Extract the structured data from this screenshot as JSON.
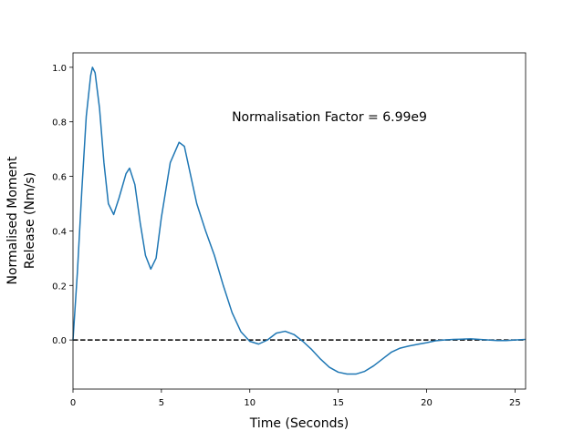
{
  "chart_data": {
    "type": "line",
    "xlabel": "Time (Seconds)",
    "ylabel": [
      "Normalised Moment",
      "Release (Nm/s)"
    ],
    "annotation": "Normalisation Factor = 6.99e9",
    "x": [
      0,
      0.25,
      0.5,
      0.75,
      1.0,
      1.1,
      1.25,
      1.5,
      1.75,
      2.0,
      2.3,
      2.6,
      3.0,
      3.2,
      3.5,
      3.8,
      4.1,
      4.4,
      4.7,
      5.0,
      5.5,
      6.0,
      6.3,
      6.6,
      7.0,
      7.5,
      8.0,
      8.5,
      9.0,
      9.5,
      10.0,
      10.5,
      11.0,
      11.5,
      12.0,
      12.5,
      13.0,
      13.5,
      14.0,
      14.5,
      15.0,
      15.5,
      16.0,
      16.5,
      17.0,
      17.5,
      18.0,
      18.5,
      19.0,
      19.5,
      20.0,
      20.5,
      21.0,
      21.5,
      22.0,
      22.5,
      23.0,
      23.5,
      24.0,
      24.5,
      25.0,
      25.6
    ],
    "series": [
      {
        "color": "#1f77b4",
        "values": [
          0,
          0.25,
          0.55,
          0.82,
          0.97,
          1.0,
          0.98,
          0.85,
          0.65,
          0.5,
          0.46,
          0.52,
          0.61,
          0.63,
          0.57,
          0.43,
          0.31,
          0.26,
          0.3,
          0.45,
          0.65,
          0.725,
          0.71,
          0.62,
          0.5,
          0.4,
          0.31,
          0.2,
          0.1,
          0.03,
          -0.005,
          -0.015,
          0.0,
          0.025,
          0.032,
          0.02,
          -0.005,
          -0.035,
          -0.07,
          -0.1,
          -0.118,
          -0.125,
          -0.125,
          -0.115,
          -0.095,
          -0.07,
          -0.045,
          -0.03,
          -0.022,
          -0.016,
          -0.01,
          -0.003,
          0.0,
          0.002,
          0.003,
          0.004,
          0.002,
          0.0,
          -0.002,
          -0.002,
          0.0,
          0.002
        ]
      }
    ],
    "hline": 0,
    "xlim": [
      0,
      25.6
    ],
    "ylim": [
      -0.18,
      1.053
    ],
    "xticks": [
      0,
      5,
      10,
      15,
      20,
      25
    ],
    "yticks": [
      {
        "value": 0,
        "label": "0.0"
      },
      {
        "value": 0.2,
        "label": "0.2"
      },
      {
        "value": 0.4,
        "label": "0.4"
      },
      {
        "value": 0.6,
        "label": "0.6"
      },
      {
        "value": 0.8,
        "label": "0.8"
      },
      {
        "value": 1.0,
        "label": "1.0"
      }
    ]
  }
}
